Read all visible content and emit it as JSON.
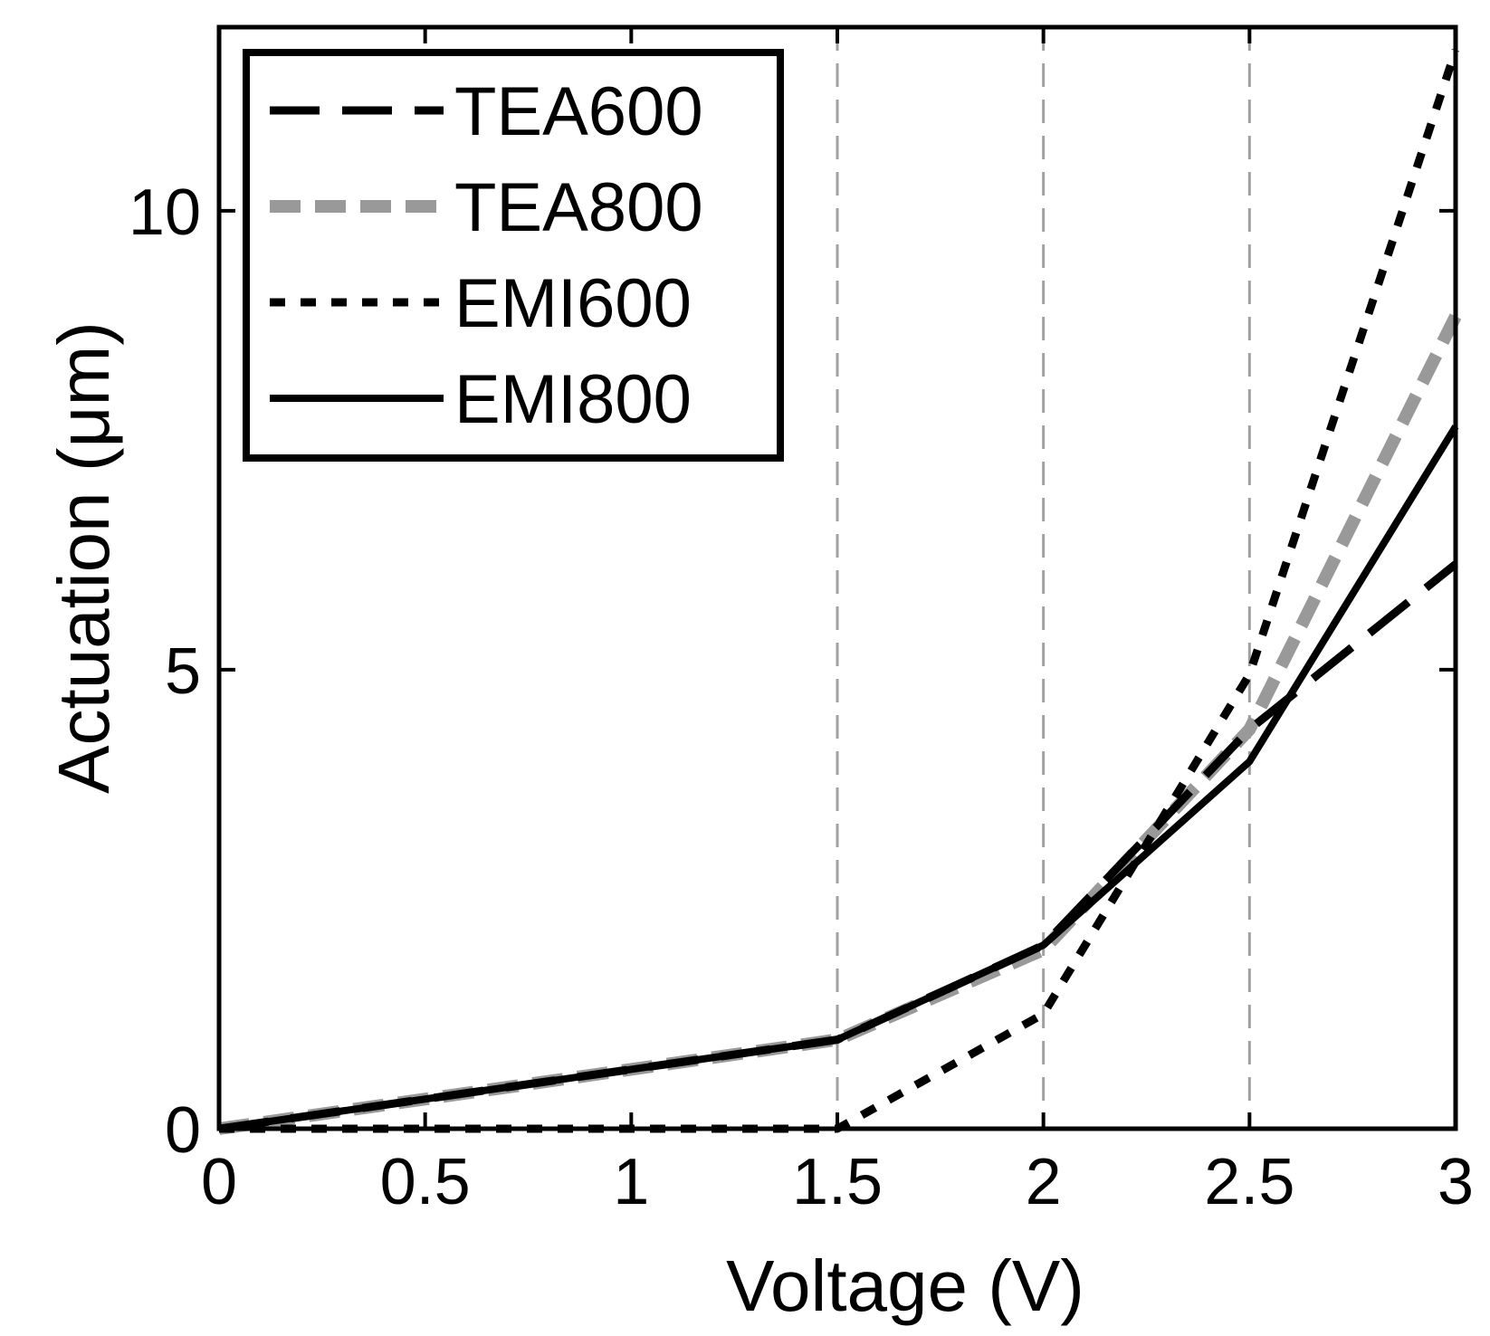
{
  "chart_data": {
    "type": "line",
    "title": "",
    "xlabel": "Voltage (V)",
    "ylabel": "Actuation (μm)",
    "xlim": [
      0,
      3
    ],
    "ylim": [
      0,
      12
    ],
    "xticks": [
      0,
      0.5,
      1,
      1.5,
      2,
      2.5,
      3
    ],
    "xtick_labels": [
      "0",
      "0.5",
      "1",
      "1.5",
      "2",
      "2.5",
      "3"
    ],
    "yticks": [
      0,
      5,
      10
    ],
    "ytick_labels": [
      "0",
      "5",
      "10"
    ],
    "vertical_gridlines_at": [
      1.5,
      2,
      2.5
    ],
    "legend_position": "top-left",
    "series": [
      {
        "name": "TEA600",
        "x": [
          0,
          1.5,
          2,
          2.5,
          3
        ],
        "y": [
          0,
          0.97,
          2.0,
          4.35,
          6.15
        ],
        "color": "#000000",
        "style": "long-dash"
      },
      {
        "name": "TEA800",
        "x": [
          0,
          1.5,
          2,
          2.5,
          3
        ],
        "y": [
          0,
          0.97,
          1.95,
          4.35,
          8.85
        ],
        "color": "#999999",
        "style": "thick-dash"
      },
      {
        "name": "EMI600",
        "x": [
          0,
          1.5,
          2,
          2.5,
          3
        ],
        "y": [
          0,
          0,
          1.25,
          4.95,
          11.75
        ],
        "color": "#000000",
        "style": "dotted"
      },
      {
        "name": "EMI800",
        "x": [
          0,
          1.5,
          2,
          2.5,
          3
        ],
        "y": [
          0,
          0.97,
          2.0,
          4.0,
          7.65
        ],
        "color": "#000000",
        "style": "solid"
      }
    ]
  }
}
